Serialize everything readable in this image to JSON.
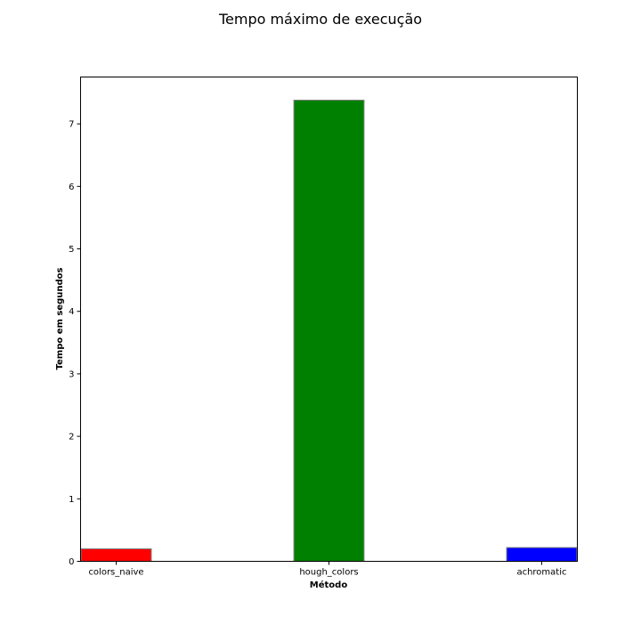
{
  "chart_data": {
    "type": "bar",
    "title": "Tempo máximo de execução",
    "xlabel": "Método",
    "ylabel": "Tempo em segundos",
    "categories": [
      "colors_naive",
      "hough_colors",
      "achromatic"
    ],
    "values": [
      0.2,
      7.38,
      0.22
    ],
    "colors": [
      "#ff0000",
      "#008000",
      "#0000ff"
    ],
    "edgecolor": "#808080",
    "ylim": [
      0,
      7.75
    ],
    "yticks": [
      0,
      1,
      2,
      3,
      4,
      5,
      6,
      7
    ],
    "grid": false
  }
}
